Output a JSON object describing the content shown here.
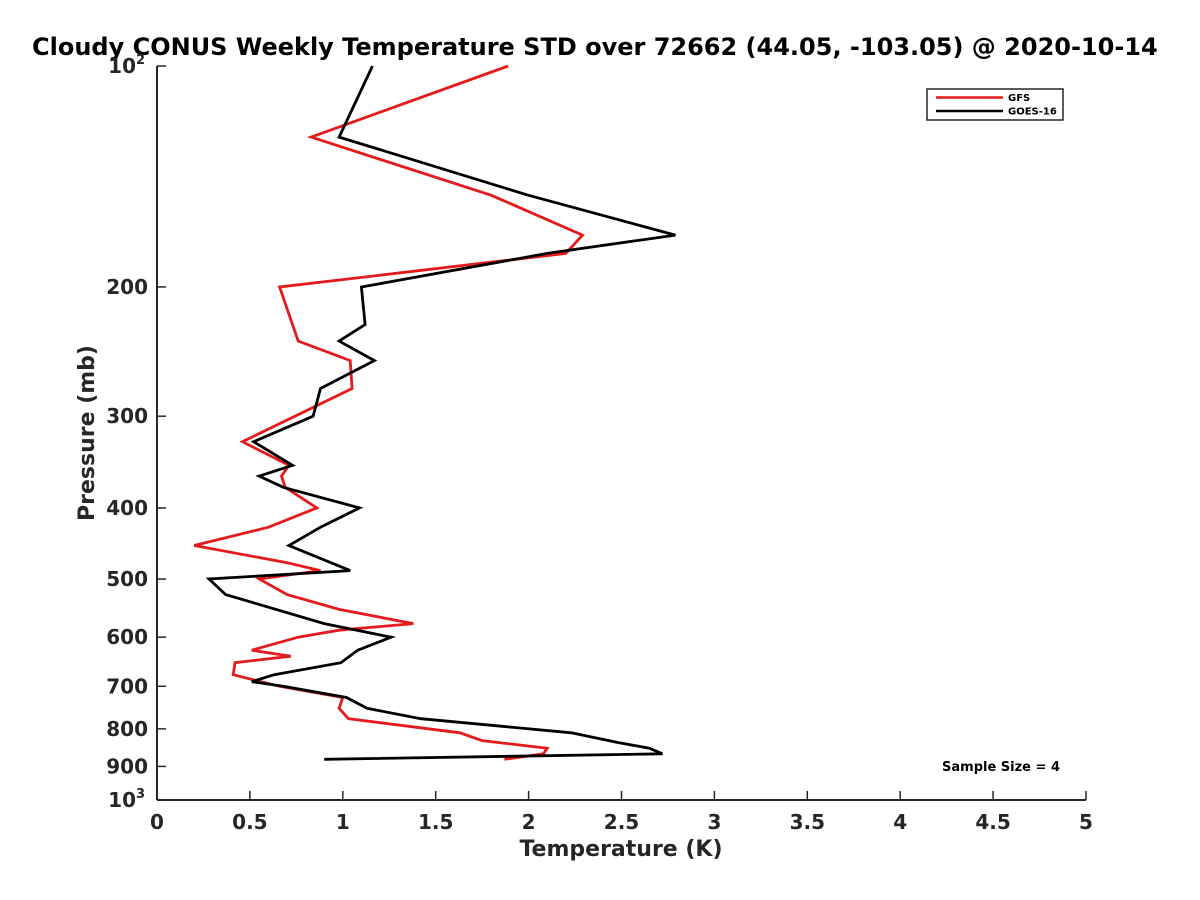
{
  "chart_data": {
    "type": "line",
    "title": "Cloudy CONUS Weekly Temperature STD over 72662 (44.05, -103.05) @ 2020-10-14",
    "xlabel": "Temperature (K)",
    "ylabel": "Pressure (mb)",
    "xlim": [
      0,
      5
    ],
    "ylim": [
      100,
      1000
    ],
    "y_scale": "log",
    "y_reversed": true,
    "grid": false,
    "legend_position": "top-right",
    "x_ticks": [
      {
        "value": 0,
        "label": "0"
      },
      {
        "value": 0.5,
        "label": "0.5"
      },
      {
        "value": 1,
        "label": "1"
      },
      {
        "value": 1.5,
        "label": "1.5"
      },
      {
        "value": 2,
        "label": "2"
      },
      {
        "value": 2.5,
        "label": "2.5"
      },
      {
        "value": 3,
        "label": "3"
      },
      {
        "value": 3.5,
        "label": "3.5"
      },
      {
        "value": 4,
        "label": "4"
      },
      {
        "value": 4.5,
        "label": "4.5"
      },
      {
        "value": 5,
        "label": "5"
      }
    ],
    "y_ticks": [
      {
        "value": 100,
        "base": "10",
        "exp": "2"
      },
      {
        "value": 200,
        "label": "200"
      },
      {
        "value": 300,
        "label": "300"
      },
      {
        "value": 400,
        "label": "400"
      },
      {
        "value": 500,
        "label": "500"
      },
      {
        "value": 600,
        "label": "600"
      },
      {
        "value": 700,
        "label": "700"
      },
      {
        "value": 800,
        "label": "800"
      },
      {
        "value": 900,
        "label": "900"
      },
      {
        "value": 1000,
        "base": "10",
        "exp": "3"
      }
    ],
    "series": [
      {
        "name": "GFS",
        "color": "#e41a1c",
        "points": [
          {
            "x": 1.89,
            "y": 100
          },
          {
            "x": 0.83,
            "y": 125
          },
          {
            "x": 1.8,
            "y": 150
          },
          {
            "x": 2.29,
            "y": 170
          },
          {
            "x": 2.2,
            "y": 180
          },
          {
            "x": 0.66,
            "y": 200
          },
          {
            "x": 0.76,
            "y": 237
          },
          {
            "x": 1.04,
            "y": 252
          },
          {
            "x": 1.05,
            "y": 275
          },
          {
            "x": 0.46,
            "y": 325
          },
          {
            "x": 0.71,
            "y": 350
          },
          {
            "x": 0.67,
            "y": 362
          },
          {
            "x": 0.69,
            "y": 375
          },
          {
            "x": 0.86,
            "y": 400
          },
          {
            "x": 0.6,
            "y": 425
          },
          {
            "x": 0.2,
            "y": 450
          },
          {
            "x": 0.7,
            "y": 475
          },
          {
            "x": 0.88,
            "y": 487
          },
          {
            "x": 0.55,
            "y": 500
          },
          {
            "x": 0.7,
            "y": 525
          },
          {
            "x": 0.98,
            "y": 550
          },
          {
            "x": 1.38,
            "y": 575
          },
          {
            "x": 0.98,
            "y": 587
          },
          {
            "x": 0.76,
            "y": 600
          },
          {
            "x": 0.51,
            "y": 625
          },
          {
            "x": 0.72,
            "y": 637
          },
          {
            "x": 0.42,
            "y": 650
          },
          {
            "x": 0.41,
            "y": 675
          },
          {
            "x": 0.66,
            "y": 700
          },
          {
            "x": 1.0,
            "y": 725
          },
          {
            "x": 0.98,
            "y": 750
          },
          {
            "x": 1.03,
            "y": 775
          },
          {
            "x": 1.63,
            "y": 810
          },
          {
            "x": 1.75,
            "y": 830
          },
          {
            "x": 2.1,
            "y": 850
          },
          {
            "x": 2.08,
            "y": 865
          },
          {
            "x": 1.87,
            "y": 880
          }
        ]
      },
      {
        "name": "GOES-16",
        "color": "#000000",
        "points": [
          {
            "x": 1.16,
            "y": 100
          },
          {
            "x": 0.98,
            "y": 125
          },
          {
            "x": 2.0,
            "y": 150
          },
          {
            "x": 2.79,
            "y": 170
          },
          {
            "x": 2.1,
            "y": 180
          },
          {
            "x": 1.1,
            "y": 200
          },
          {
            "x": 1.12,
            "y": 225
          },
          {
            "x": 0.98,
            "y": 237
          },
          {
            "x": 1.17,
            "y": 252
          },
          {
            "x": 0.88,
            "y": 275
          },
          {
            "x": 0.84,
            "y": 300
          },
          {
            "x": 0.52,
            "y": 325
          },
          {
            "x": 0.73,
            "y": 350
          },
          {
            "x": 0.55,
            "y": 362
          },
          {
            "x": 0.68,
            "y": 375
          },
          {
            "x": 1.09,
            "y": 400
          },
          {
            "x": 0.88,
            "y": 425
          },
          {
            "x": 0.71,
            "y": 450
          },
          {
            "x": 1.04,
            "y": 487
          },
          {
            "x": 0.28,
            "y": 500
          },
          {
            "x": 0.37,
            "y": 525
          },
          {
            "x": 0.9,
            "y": 575
          },
          {
            "x": 1.26,
            "y": 600
          },
          {
            "x": 1.08,
            "y": 625
          },
          {
            "x": 0.99,
            "y": 650
          },
          {
            "x": 0.63,
            "y": 675
          },
          {
            "x": 0.51,
            "y": 690
          },
          {
            "x": 0.68,
            "y": 700
          },
          {
            "x": 1.02,
            "y": 725
          },
          {
            "x": 1.13,
            "y": 750
          },
          {
            "x": 1.42,
            "y": 775
          },
          {
            "x": 2.23,
            "y": 810
          },
          {
            "x": 2.48,
            "y": 835
          },
          {
            "x": 2.65,
            "y": 850
          },
          {
            "x": 2.72,
            "y": 865
          },
          {
            "x": 0.9,
            "y": 880
          }
        ]
      }
    ],
    "annotations": [
      {
        "text": "Sample Size = 4",
        "position": "bottom-right"
      }
    ]
  }
}
